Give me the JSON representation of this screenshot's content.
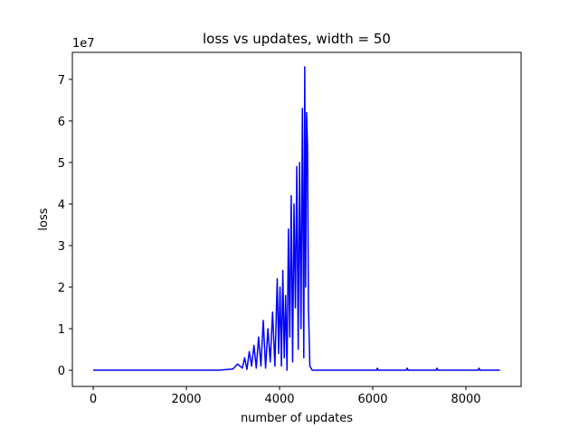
{
  "chart_data": {
    "type": "line",
    "title": "loss vs updates, width = 50",
    "x_label": "number of updates",
    "y_label": "loss",
    "y_offset_label": "1e7",
    "xlim": [
      -447,
      9184
    ],
    "ylim": [
      -0.39,
      7.65
    ],
    "xticks": [
      0,
      2000,
      4000,
      6000,
      8000
    ],
    "yticks": [
      0,
      1,
      2,
      3,
      4,
      5,
      6,
      7
    ],
    "series": [
      {
        "color": "#0000ff",
        "x": [
          0,
          2700,
          3000,
          3100,
          3200,
          3250,
          3300,
          3350,
          3400,
          3450,
          3500,
          3550,
          3600,
          3650,
          3700,
          3750,
          3800,
          3850,
          3900,
          3950,
          3980,
          4010,
          4040,
          4070,
          4100,
          4130,
          4160,
          4190,
          4220,
          4250,
          4280,
          4310,
          4340,
          4370,
          4400,
          4430,
          4460,
          4490,
          4520,
          4540,
          4560,
          4580,
          4600,
          4620,
          4650,
          4700,
          6080,
          6100,
          6120,
          6720,
          6740,
          6760,
          7360,
          7380,
          7400,
          8260,
          8280,
          8300,
          8730
        ],
        "values": [
          0,
          0,
          0.03,
          0.15,
          0.05,
          0.3,
          0.02,
          0.45,
          0.1,
          0.6,
          0.05,
          0.8,
          0.1,
          1.2,
          0.05,
          1.0,
          0.2,
          1.4,
          0.1,
          2.2,
          0.4,
          2.0,
          0.1,
          2.4,
          0.3,
          1.8,
          0.0,
          3.4,
          0.8,
          4.2,
          0.2,
          4.0,
          1.5,
          4.9,
          0.5,
          5.0,
          1.0,
          6.3,
          0.3,
          7.3,
          2.0,
          6.2,
          5.4,
          1.5,
          0.1,
          0,
          0,
          0.05,
          0,
          0,
          0.05,
          0,
          0,
          0.05,
          0,
          0,
          0.05,
          0,
          0
        ]
      }
    ]
  }
}
